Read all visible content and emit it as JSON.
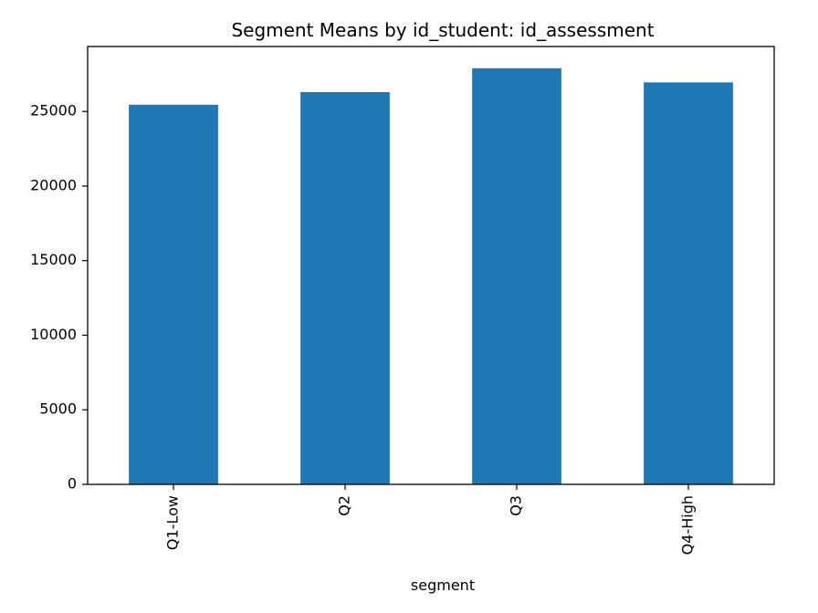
{
  "chart_data": {
    "type": "bar",
    "title": "Segment Means by id_student: id_assessment",
    "xlabel": "segment",
    "ylabel": "",
    "categories": [
      "Q1-Low",
      "Q2",
      "Q3",
      "Q4-High"
    ],
    "values": [
      25450,
      26300,
      27900,
      26950
    ],
    "ylim": [
      0,
      29355
    ],
    "yticks": [
      0,
      5000,
      10000,
      15000,
      20000,
      25000
    ],
    "ytick_labels": [
      "0",
      "5000",
      "10000",
      "15000",
      "20000",
      "25000"
    ],
    "grid": false,
    "legend": "none",
    "bar_color": "#1f77b4",
    "axis_color": "#000000"
  }
}
